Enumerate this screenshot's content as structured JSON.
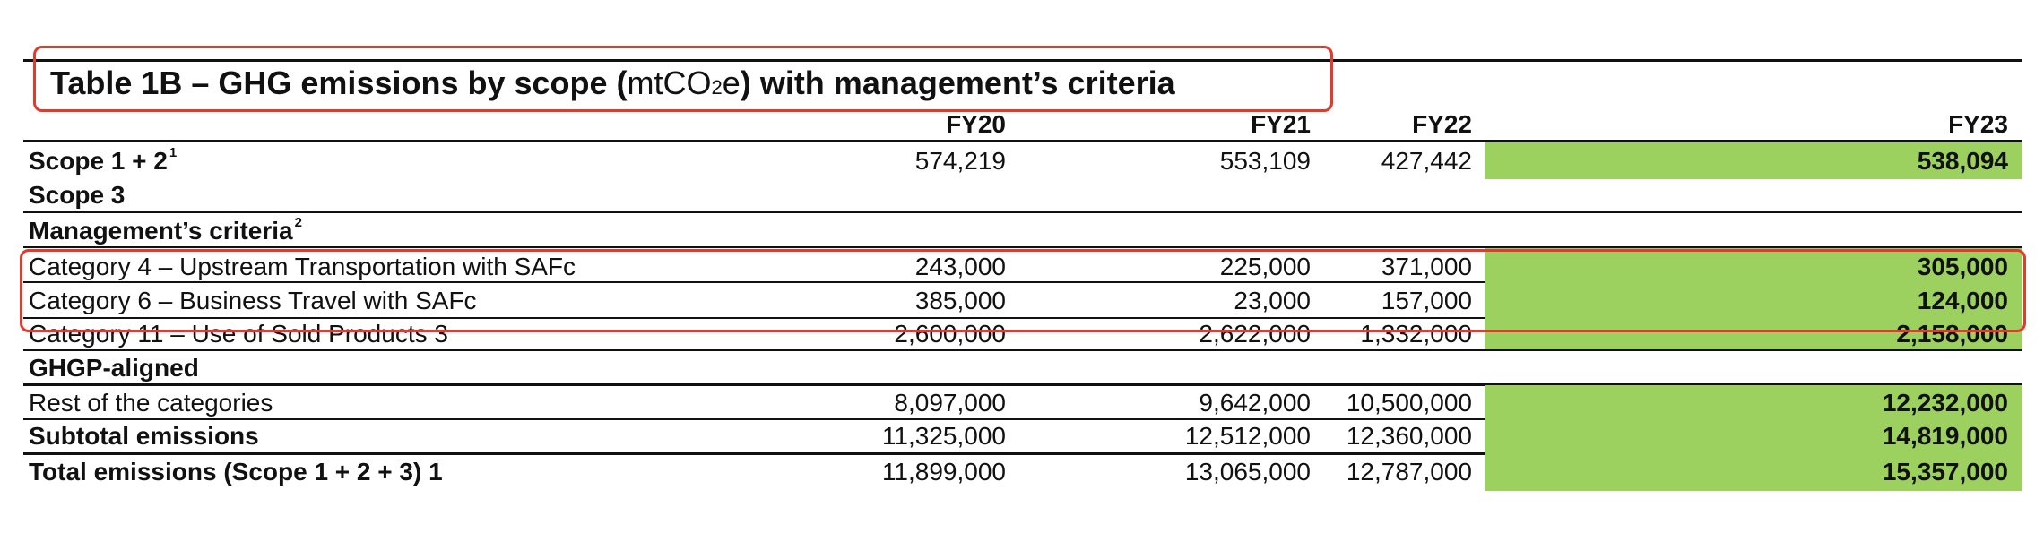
{
  "table": {
    "title_prefix": "Table 1B – GHG emissions by scope (",
    "title_unit_a": "mtCO",
    "title_unit_sub": "2",
    "title_unit_b": "e",
    "title_suffix": ") with management’s criteria",
    "headers": [
      "FY20",
      "FY21",
      "FY22",
      "FY23"
    ],
    "rows": [
      {
        "label": "Scope 1 + 2",
        "sup": "1",
        "values": [
          "574,219",
          "553,109",
          "427,442",
          "538,094"
        ]
      },
      {
        "label": "Scope 3"
      },
      {
        "label": "Management’s criteria",
        "sup": "2"
      },
      {
        "label": "Category 4 – Upstream Transportation with SAFc",
        "values": [
          "243,000",
          "225,000",
          "371,000",
          "305,000"
        ]
      },
      {
        "label": "Category 6 – Business Travel with SAFc",
        "values": [
          "385,000",
          "23,000",
          "157,000",
          "124,000"
        ]
      },
      {
        "label": "Category 11 – Use of Sold Products 3",
        "values": [
          "2,600,000",
          "2,622,000",
          "1,332,000",
          "2,158,000"
        ]
      },
      {
        "label": "GHGP-aligned"
      },
      {
        "label": "Rest of the categories",
        "values": [
          "8,097,000",
          "9,642,000",
          "10,500,000",
          "12,232,000"
        ]
      },
      {
        "label": "Subtotal emissions",
        "values": [
          "11,325,000",
          "12,512,000",
          "12,360,000",
          "14,819,000"
        ]
      },
      {
        "label": "Total emissions (Scope 1 + 2 + 3) 1",
        "values": [
          "11,899,000",
          "13,065,000",
          "12,787,000",
          "15,357,000"
        ]
      }
    ]
  },
  "colors": {
    "fy23_highlight": "#9cd05f",
    "annotation_box": "#e23b2e"
  }
}
